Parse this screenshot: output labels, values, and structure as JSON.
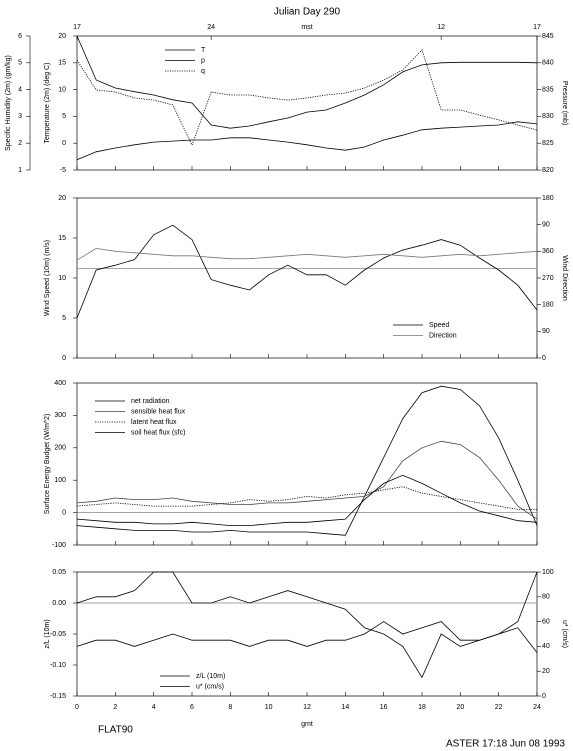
{
  "footer_left": "FLAT90",
  "footer_right": "ASTER 17:18 Jun 08 1993",
  "chart_data": [
    {
      "type": "line",
      "title": "Julian Day 290",
      "x2label": "mst",
      "x2ticks": [
        {
          "value": 0,
          "label": "17"
        },
        {
          "value": 7,
          "label": "24"
        },
        {
          "value": 19,
          "label": "12"
        },
        {
          "value": 24,
          "label": "17"
        }
      ],
      "xlim": [
        0,
        24
      ],
      "x": [
        0,
        1,
        2,
        3,
        4,
        5,
        6,
        7,
        8,
        9,
        10,
        11,
        12,
        13,
        14,
        15,
        16,
        17,
        18,
        19,
        20,
        21,
        22,
        23,
        24
      ],
      "ylabel": "Temperature (2m) (deg C)",
      "ylim": [
        -5,
        20
      ],
      "yticks": [
        -5,
        0,
        5,
        10,
        15,
        20
      ],
      "y2label": "Pressure (mb)",
      "y2lim": [
        820,
        845
      ],
      "y2ticks": [
        820,
        825,
        830,
        835,
        840,
        845
      ],
      "y3label": "Specific Humidity (2m) (gm/kg)",
      "y3lim": [
        1,
        6
      ],
      "y3ticks": [
        1,
        2,
        3,
        4,
        5,
        6
      ],
      "series": [
        {
          "name": "T",
          "color": "#000000",
          "dash": false,
          "axis": "y",
          "values": [
            20.0,
            11.8,
            10.3,
            9.6,
            9.0,
            8.1,
            7.5,
            3.4,
            2.8,
            3.2,
            4.0,
            4.7,
            5.8,
            6.2,
            7.5,
            9.0,
            10.9,
            13.3,
            14.6,
            15.0,
            15.1,
            15.1,
            15.1,
            15.1,
            15.0
          ]
        },
        {
          "name": "p",
          "color": "#000000",
          "dash": false,
          "axis": "y2",
          "values": [
            821.9,
            823.4,
            824.1,
            824.7,
            825.2,
            825.4,
            825.6,
            825.6,
            826.0,
            826.0,
            825.6,
            825.2,
            824.7,
            824.1,
            823.7,
            824.3,
            825.6,
            826.5,
            827.5,
            827.8,
            828.0,
            828.2,
            828.4,
            829.0,
            828.6
          ]
        },
        {
          "name": "q",
          "color": "#000000",
          "dash": true,
          "axis": "y3",
          "values": [
            5.1,
            3.99,
            3.91,
            3.69,
            3.61,
            3.43,
            1.93,
            3.91,
            3.8,
            3.8,
            3.69,
            3.61,
            3.69,
            3.8,
            3.87,
            4.06,
            4.36,
            4.73,
            5.48,
            3.24,
            3.24,
            3.05,
            2.87,
            2.68,
            2.49
          ]
        }
      ]
    },
    {
      "type": "line",
      "xlim": [
        0,
        24
      ],
      "x": [
        0,
        1,
        2,
        3,
        4,
        5,
        6,
        7,
        8,
        9,
        10,
        11,
        12,
        13,
        14,
        15,
        16,
        17,
        18,
        19,
        20,
        21,
        22,
        23,
        24
      ],
      "ylabel": "Wind Speed (10m) (m/s)",
      "ylim": [
        0,
        20
      ],
      "yticks": [
        0,
        5,
        10,
        15,
        20
      ],
      "y2label": "Wind Direction",
      "y2lim": [
        0,
        540
      ],
      "y2ticks": [
        0,
        90,
        180,
        270,
        360,
        {
          "value": 450,
          "label": "90"
        },
        {
          "value": 540,
          "label": "180"
        }
      ],
      "hline": 11.2,
      "series": [
        {
          "name": "Speed",
          "color": "#000000",
          "dash": false,
          "axis": "y",
          "values": [
            5.0,
            11.0,
            11.6,
            12.3,
            15.4,
            16.6,
            14.8,
            9.8,
            9.1,
            8.5,
            10.4,
            11.6,
            10.4,
            10.4,
            9.1,
            11.0,
            12.5,
            13.5,
            14.1,
            14.8,
            14.1,
            12.5,
            11.0,
            9.1,
            6.0
          ]
        },
        {
          "name": "Direction",
          "color": "#777777",
          "dash": false,
          "axis": "y2",
          "values": [
            330,
            370,
            360,
            355,
            350,
            345,
            345,
            340,
            335,
            335,
            340,
            345,
            350,
            345,
            340,
            345,
            350,
            345,
            340,
            345,
            350,
            345,
            350,
            355,
            360
          ]
        }
      ]
    },
    {
      "type": "line",
      "xlim": [
        0,
        24
      ],
      "x": [
        0,
        1,
        2,
        3,
        4,
        5,
        6,
        7,
        8,
        9,
        10,
        11,
        12,
        13,
        14,
        15,
        16,
        17,
        18,
        19,
        20,
        21,
        22,
        23,
        24
      ],
      "ylabel": "Surface Energy Budget (W/m^2)",
      "ylim": [
        -100,
        400
      ],
      "yticks": [
        -100,
        0,
        100,
        200,
        300,
        400
      ],
      "hline": 0,
      "series": [
        {
          "name": "net radiation",
          "color": "#000000",
          "dash": false,
          "axis": "y",
          "values": [
            -40,
            -45,
            -50,
            -55,
            -55,
            -55,
            -60,
            -60,
            -55,
            -60,
            -60,
            -60,
            -60,
            -65,
            -70,
            50,
            170,
            290,
            370,
            390,
            380,
            330,
            230,
            100,
            -40
          ]
        },
        {
          "name": "sensible heat flux",
          "color": "#444444",
          "dash": false,
          "axis": "y",
          "values": [
            30,
            35,
            45,
            40,
            40,
            45,
            35,
            30,
            25,
            25,
            30,
            30,
            35,
            40,
            45,
            50,
            80,
            160,
            200,
            220,
            210,
            170,
            100,
            20,
            -20
          ]
        },
        {
          "name": "latent heat flux",
          "color": "#000000",
          "dash": true,
          "axis": "y",
          "values": [
            20,
            25,
            30,
            25,
            20,
            20,
            20,
            25,
            30,
            40,
            35,
            40,
            50,
            45,
            55,
            60,
            70,
            80,
            60,
            50,
            40,
            30,
            20,
            10,
            10
          ]
        },
        {
          "name": "soil heat flux (sfc)",
          "color": "#000000",
          "dash": false,
          "axis": "y",
          "values": [
            -20,
            -25,
            -30,
            -30,
            -35,
            -35,
            -30,
            -35,
            -40,
            -40,
            -35,
            -30,
            -30,
            -25,
            -20,
            40,
            90,
            115,
            90,
            60,
            30,
            5,
            -10,
            -25,
            -30
          ]
        }
      ]
    },
    {
      "type": "line",
      "xlabel": "gmt",
      "xlim": [
        0,
        24
      ],
      "xticks": [
        0,
        2,
        4,
        6,
        8,
        10,
        12,
        14,
        16,
        18,
        20,
        22,
        24
      ],
      "x": [
        0,
        1,
        2,
        3,
        4,
        5,
        6,
        7,
        8,
        9,
        10,
        11,
        12,
        13,
        14,
        15,
        16,
        17,
        18,
        19,
        20,
        21,
        22,
        23,
        24
      ],
      "ylabel": "z/L (10m)",
      "ylim": [
        -0.15,
        0.05
      ],
      "yticks": [
        -0.15,
        {
          "value": -0.1,
          "label": "-0.10"
        },
        -0.05,
        {
          "value": 0,
          "label": "0.00"
        },
        0.05
      ],
      "y2label": "u* (cm/s)",
      "y2lim": [
        0,
        100
      ],
      "y2ticks": [
        0,
        20,
        40,
        60,
        80,
        100
      ],
      "hline": 0,
      "series": [
        {
          "name": "z/L (10m)",
          "color": "#000000",
          "dash": false,
          "axis": "y",
          "values": [
            0.0,
            0.01,
            0.01,
            0.02,
            0.05,
            0.05,
            0.0,
            0.0,
            0.01,
            0.0,
            0.01,
            0.02,
            0.01,
            0.0,
            -0.01,
            -0.04,
            -0.05,
            -0.07,
            -0.12,
            -0.05,
            -0.07,
            -0.06,
            -0.05,
            -0.04,
            -0.08
          ]
        },
        {
          "name": "u* (cm/s)",
          "color": "#000000",
          "dash": false,
          "axis": "y2",
          "values": [
            40,
            45,
            45,
            40,
            45,
            50,
            45,
            45,
            45,
            40,
            45,
            45,
            40,
            45,
            45,
            50,
            60,
            50,
            55,
            60,
            45,
            45,
            50,
            60,
            100
          ]
        }
      ]
    }
  ]
}
